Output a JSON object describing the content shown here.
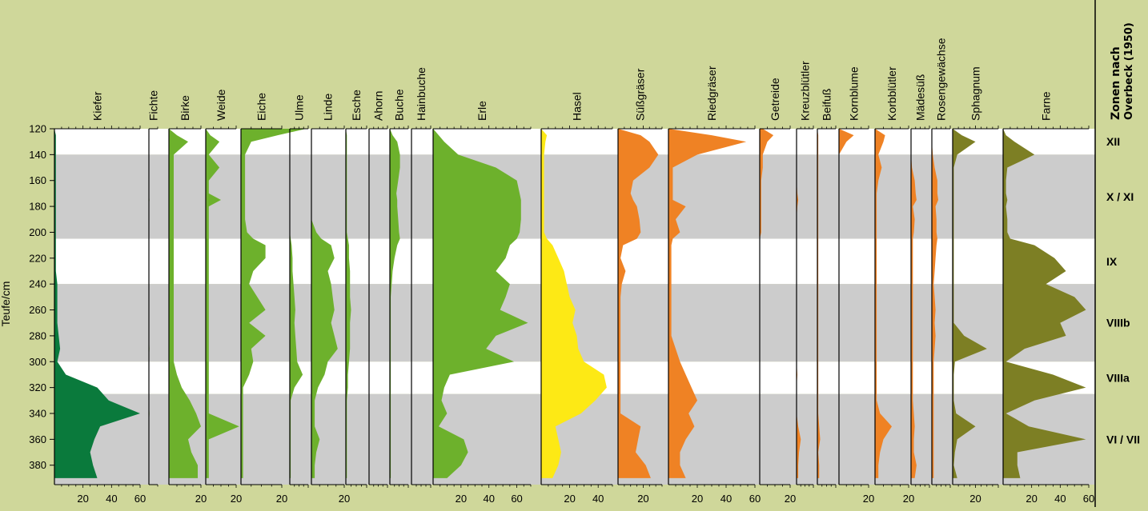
{
  "chart_data": {
    "type": "area",
    "ylabel": "Teufe/cm",
    "depth_ticks": [
      120,
      140,
      160,
      180,
      200,
      220,
      240,
      260,
      280,
      300,
      320,
      340,
      360,
      380
    ],
    "ylim": [
      120,
      395
    ],
    "zones_header": {
      "line1": "Zonen nach",
      "line2": "Overbeck (1950)"
    },
    "colors": {
      "background": "#cfd79a",
      "band_grey": "#cccccc",
      "band_white": "#ffffff",
      "trees": "#6db12c",
      "kiefer": "#0a7a3c",
      "hasel": "#fde915",
      "herbs": "#ef8224",
      "spores": "#7d7f24"
    },
    "zones": [
      {
        "label": "XII",
        "from": 120,
        "to": 140,
        "shade": "white"
      },
      {
        "label": "X / XI",
        "from": 140,
        "to": 205,
        "shade": "grey"
      },
      {
        "label": "IX",
        "from": 205,
        "to": 240,
        "shade": "white"
      },
      {
        "label": "VIIIb",
        "from": 240,
        "to": 300,
        "shade": "grey"
      },
      {
        "label": "VIIIa",
        "from": 300,
        "to": 325,
        "shade": "white"
      },
      {
        "label": "VI / VII",
        "from": 325,
        "to": 395,
        "shade": "grey"
      }
    ],
    "depths": [
      120,
      125,
      130,
      140,
      150,
      160,
      170,
      175,
      180,
      190,
      200,
      205,
      210,
      220,
      230,
      240,
      250,
      260,
      270,
      280,
      290,
      300,
      310,
      320,
      330,
      340,
      350,
      360,
      370,
      380,
      390
    ],
    "series": [
      {
        "name": "Kiefer",
        "group": "kiefer",
        "max": 60,
        "ticks": [
          "20",
          "40",
          "60"
        ],
        "values": [
          0,
          1,
          1,
          1,
          1,
          1,
          1,
          1,
          1,
          1,
          1,
          1,
          1,
          1,
          1,
          2,
          2,
          2,
          2,
          3,
          4,
          2,
          8,
          30,
          38,
          60,
          32,
          28,
          25,
          27,
          30
        ]
      },
      {
        "name": "Fichte",
        "group": "trees",
        "max": 5,
        "ticks": [],
        "values": [
          0,
          0,
          0,
          0,
          0,
          0,
          0,
          0.3,
          0,
          0,
          0,
          0,
          0,
          0,
          0,
          0,
          0,
          0,
          0,
          0,
          0.3,
          0,
          0,
          0,
          0,
          0.3,
          0,
          0,
          0,
          0,
          0
        ]
      },
      {
        "name": "Birke",
        "group": "trees",
        "max": 20,
        "ticks": [
          "20"
        ],
        "values": [
          0,
          5,
          12,
          3,
          3,
          3,
          3,
          3,
          3,
          3,
          3,
          3,
          3,
          3,
          3,
          3,
          3,
          3,
          3,
          3,
          3,
          3,
          5,
          8,
          13,
          17,
          20,
          12,
          14,
          18,
          18
        ]
      },
      {
        "name": "Weide",
        "group": "trees",
        "max": 20,
        "ticks": [
          "20"
        ],
        "values": [
          0,
          3,
          9,
          2,
          9,
          2,
          2,
          10,
          2,
          2,
          2,
          2,
          2,
          2,
          2,
          2,
          2,
          2,
          2,
          2,
          2,
          2,
          2,
          2,
          2,
          2,
          22,
          2,
          2,
          2,
          2
        ]
      },
      {
        "name": "Eiche",
        "group": "trees",
        "max": 20,
        "ticks": [
          "20"
        ],
        "values": [
          32,
          18,
          5,
          2,
          2,
          2,
          2,
          2,
          2,
          2,
          3,
          6,
          12,
          12,
          6,
          4,
          8,
          12,
          4,
          12,
          5,
          6,
          4,
          1,
          1,
          1,
          1,
          1,
          1,
          1,
          1
        ]
      },
      {
        "name": "Ulme",
        "group": "trees",
        "max": 20,
        "ticks": [],
        "values": [
          0,
          0,
          0,
          0,
          0,
          0,
          0,
          0,
          0,
          0,
          0,
          1,
          2,
          3,
          3,
          4,
          5,
          6,
          5,
          6,
          7,
          8,
          14,
          5,
          1,
          1,
          1,
          1,
          1,
          1,
          1
        ]
      },
      {
        "name": "Linde",
        "group": "trees",
        "max": 20,
        "ticks": [
          "20"
        ],
        "values": [
          0,
          0,
          0,
          0,
          0,
          0,
          0,
          0,
          0,
          0,
          3,
          6,
          12,
          14,
          10,
          12,
          13,
          14,
          12,
          14,
          16,
          10,
          8,
          4,
          2,
          2,
          2,
          5,
          3,
          2,
          2
        ]
      },
      {
        "name": "Esche",
        "group": "trees",
        "max": 20,
        "ticks": [],
        "values": [
          0,
          1,
          1,
          1,
          1,
          1,
          1,
          1,
          1,
          1,
          1,
          2,
          3,
          3,
          4,
          4,
          4,
          5,
          4,
          4,
          4,
          3,
          2,
          2,
          1,
          1,
          1,
          1,
          1,
          1,
          1
        ]
      },
      {
        "name": "Ahorn",
        "group": "trees",
        "max": 20,
        "ticks": [],
        "values": [
          0,
          0,
          0,
          0,
          0,
          0,
          0,
          0,
          0,
          0,
          0,
          0,
          0,
          0,
          0,
          0,
          0,
          0,
          0,
          0,
          0,
          0,
          0,
          0,
          0,
          0,
          0,
          0,
          0,
          0,
          0
        ]
      },
      {
        "name": "Buche",
        "group": "trees",
        "max": 20,
        "ticks": [],
        "values": [
          0,
          3,
          8,
          11,
          11,
          9,
          7,
          8,
          8,
          9,
          10,
          11,
          8,
          5,
          3,
          2,
          1,
          1,
          1,
          1,
          1,
          1,
          1,
          1,
          1,
          1,
          1,
          1,
          1,
          1,
          1
        ]
      },
      {
        "name": "Hainbuche",
        "group": "trees",
        "max": 20,
        "ticks": [],
        "values": [
          0,
          0,
          0,
          0,
          0,
          0,
          0,
          0,
          0,
          0,
          0,
          0,
          0,
          0,
          0,
          0,
          0,
          0,
          0,
          0,
          0,
          0,
          0,
          0,
          0,
          0,
          0,
          0,
          0,
          0,
          0
        ]
      },
      {
        "name": "Erle",
        "group": "trees",
        "max": 70,
        "ticks": [
          "20",
          "40",
          "60"
        ],
        "values": [
          0,
          4,
          8,
          18,
          45,
          60,
          62,
          63,
          63,
          63,
          62,
          60,
          55,
          52,
          45,
          55,
          52,
          48,
          68,
          45,
          38,
          58,
          12,
          8,
          6,
          10,
          4,
          22,
          25,
          20,
          10
        ]
      },
      {
        "name": "Hasel",
        "group": "hasel",
        "max": 50,
        "ticks": [
          "20",
          "40"
        ],
        "values": [
          0,
          4,
          3,
          2,
          2,
          2,
          2,
          2,
          2,
          2,
          2,
          4,
          8,
          12,
          16,
          18,
          20,
          24,
          22,
          25,
          26,
          30,
          44,
          46,
          38,
          28,
          10,
          12,
          14,
          12,
          8
        ]
      },
      {
        "name": "Süßgräser",
        "group": "herbs",
        "max": 35,
        "ticks": [
          "20"
        ],
        "values": [
          0,
          18,
          25,
          32,
          25,
          12,
          10,
          12,
          15,
          17,
          18,
          15,
          4,
          2,
          6,
          3,
          2,
          2,
          2,
          2,
          2,
          2,
          2,
          2,
          2,
          2,
          18,
          16,
          14,
          22,
          26
        ]
      },
      {
        "name": "Riedgräser",
        "group": "herbs",
        "max": 60,
        "ticks": [
          "20",
          "40",
          "60"
        ],
        "values": [
          0,
          30,
          54,
          20,
          3,
          3,
          3,
          3,
          12,
          5,
          8,
          3,
          2,
          2,
          2,
          2,
          2,
          2,
          2,
          2,
          5,
          8,
          12,
          16,
          20,
          14,
          18,
          12,
          8,
          8,
          12
        ]
      },
      {
        "name": "Getreide",
        "group": "herbs",
        "max": 20,
        "ticks": [
          "20"
        ],
        "values": [
          2,
          9,
          5,
          2,
          2,
          1,
          1,
          1,
          1,
          1,
          1,
          0,
          0,
          0,
          0,
          0,
          0,
          0,
          0,
          0,
          0,
          0,
          0,
          0,
          0,
          0,
          0,
          0,
          0,
          0,
          0
        ]
      },
      {
        "name": "Kreuzblütler",
        "group": "herbs",
        "max": 20,
        "ticks": [],
        "values": [
          0,
          0,
          0,
          0,
          0,
          0,
          1,
          2,
          1,
          0,
          0,
          0,
          0,
          0,
          0,
          0,
          0,
          0,
          0,
          0,
          0,
          0,
          1,
          0,
          0,
          0,
          2,
          5,
          3,
          2,
          2
        ]
      },
      {
        "name": "Beifuß",
        "group": "herbs",
        "max": 20,
        "ticks": [],
        "values": [
          0,
          1,
          1,
          1,
          1,
          1,
          1,
          1,
          1,
          1,
          1,
          1,
          1,
          1,
          1,
          1,
          1,
          1,
          1,
          1,
          1,
          1,
          1,
          1,
          1,
          1,
          2,
          3,
          1,
          2,
          2
        ]
      },
      {
        "name": "Kornblume",
        "group": "herbs",
        "max": 20,
        "ticks": [
          "20"
        ],
        "values": [
          0,
          10,
          5,
          0,
          0,
          0,
          0,
          0,
          0,
          0,
          0,
          0,
          0,
          0,
          0,
          0,
          0,
          0,
          0,
          0,
          0,
          0,
          0,
          0,
          0,
          0,
          0,
          0,
          0,
          0,
          0
        ]
      },
      {
        "name": "Korbblütler",
        "group": "herbs",
        "max": 20,
        "ticks": [
          "20"
        ],
        "values": [
          0,
          6,
          5,
          2,
          4,
          2,
          1,
          1,
          1,
          1,
          1,
          1,
          1,
          1,
          1,
          1,
          1,
          1,
          1,
          1,
          1,
          1,
          1,
          1,
          1,
          3,
          10,
          5,
          3,
          2,
          2
        ]
      },
      {
        "name": "Mädesüß",
        "group": "herbs",
        "max": 20,
        "ticks": [],
        "values": [
          0,
          0,
          0,
          0,
          1,
          4,
          5,
          6,
          2,
          4,
          3,
          2,
          2,
          2,
          2,
          2,
          2,
          2,
          2,
          2,
          2,
          2,
          2,
          2,
          2,
          3,
          4,
          3,
          3,
          6,
          4
        ]
      },
      {
        "name": "Rosengewächse",
        "group": "herbs",
        "max": 20,
        "ticks": [],
        "values": [
          0,
          0,
          0,
          1,
          3,
          6,
          6,
          7,
          4,
          5,
          5,
          6,
          5,
          4,
          3,
          2,
          3,
          4,
          3,
          4,
          3,
          2,
          2,
          2,
          2,
          2,
          2,
          2,
          2,
          2,
          2
        ]
      },
      {
        "name": "Sphagnum",
        "group": "spores",
        "max": 40,
        "ticks": [
          "20"
        ],
        "values": [
          0,
          8,
          20,
          4,
          1,
          1,
          1,
          1,
          1,
          1,
          1,
          1,
          1,
          1,
          1,
          1,
          1,
          1,
          1,
          10,
          30,
          2,
          1,
          1,
          1,
          3,
          20,
          4,
          2,
          1,
          4
        ]
      },
      {
        "name": "Farne",
        "group": "spores",
        "max": 60,
        "ticks": [
          "20",
          "40",
          "60"
        ],
        "values": [
          0,
          2,
          8,
          22,
          3,
          2,
          2,
          3,
          2,
          3,
          3,
          5,
          22,
          36,
          44,
          30,
          50,
          58,
          40,
          44,
          15,
          2,
          35,
          58,
          22,
          2,
          18,
          58,
          10,
          10,
          12
        ]
      }
    ]
  }
}
